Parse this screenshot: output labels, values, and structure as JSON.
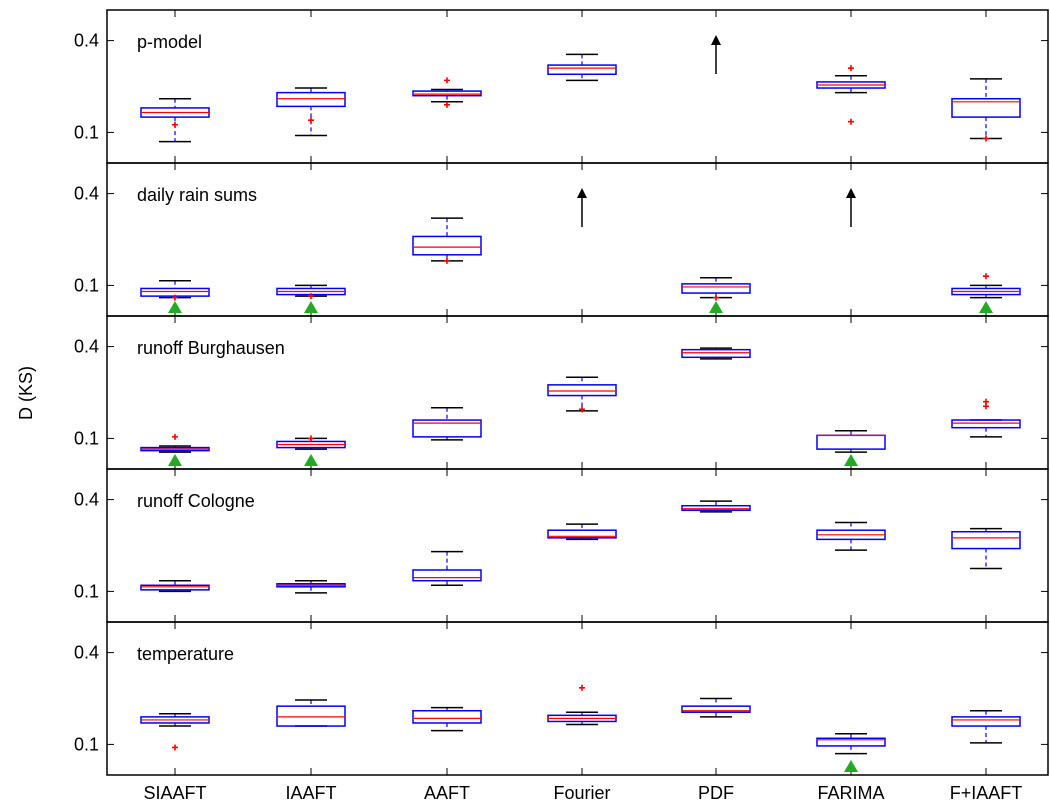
{
  "chart_data": {
    "type": "box",
    "ylabel": "D (KS)",
    "categories": [
      "SIAAFT",
      "IAAFT",
      "AAFT",
      "Fourier",
      "PDF",
      "FARIMA",
      "F+IAAFT"
    ],
    "yticks": [
      0.1,
      0.4
    ],
    "ylim": [
      0,
      0.5
    ],
    "colors": {
      "box": "#0000ff",
      "median": "#ff0000",
      "outlier": "#ff0000",
      "whisker_cap": "#000000",
      "acceptance_marker": "#22aa22",
      "arrow": "#000000"
    },
    "panels": [
      {
        "title": "p-model",
        "boxes": [
          {
            "lw": 0.07,
            "q1": 0.15,
            "med": 0.165,
            "q3": 0.18,
            "uw": 0.21,
            "out": [
              0.125
            ]
          },
          {
            "lw": 0.09,
            "q1": 0.185,
            "med": 0.21,
            "q3": 0.23,
            "uw": 0.245,
            "out": [
              0.14
            ]
          },
          {
            "lw": 0.2,
            "q1": 0.22,
            "med": 0.225,
            "q3": 0.235,
            "uw": 0.24,
            "out": [
              0.19,
              0.27
            ]
          },
          {
            "lw": 0.27,
            "q1": 0.29,
            "med": 0.31,
            "q3": 0.32,
            "uw": 0.355,
            "out": []
          },
          null,
          {
            "lw": 0.23,
            "q1": 0.245,
            "med": 0.255,
            "q3": 0.265,
            "uw": 0.285,
            "out": [
              0.135,
              0.31
            ]
          },
          {
            "lw": 0.08,
            "q1": 0.15,
            "med": 0.2,
            "q3": 0.21,
            "uw": 0.275,
            "out": [
              0.08
            ]
          }
        ],
        "accepted": [],
        "off_scale": [
          "PDF"
        ]
      },
      {
        "title": "daily rain sums",
        "boxes": [
          {
            "lw": 0.06,
            "q1": 0.065,
            "med": 0.08,
            "q3": 0.09,
            "uw": 0.115,
            "out": [
              0.06
            ]
          },
          {
            "lw": 0.065,
            "q1": 0.07,
            "med": 0.08,
            "q3": 0.09,
            "uw": 0.1,
            "out": [
              0.065
            ]
          },
          {
            "lw": 0.18,
            "q1": 0.2,
            "med": 0.225,
            "q3": 0.26,
            "uw": 0.32,
            "out": [
              0.18
            ]
          },
          null,
          {
            "lw": 0.06,
            "q1": 0.075,
            "med": 0.095,
            "q3": 0.105,
            "uw": 0.125,
            "out": [
              0.06
            ]
          },
          null,
          {
            "lw": 0.06,
            "q1": 0.07,
            "med": 0.08,
            "q3": 0.09,
            "uw": 0.1,
            "out": [
              0.13
            ]
          }
        ],
        "accepted": [
          "SIAAFT",
          "IAAFT",
          "PDF",
          "F+IAAFT"
        ],
        "off_scale": [
          "Fourier",
          "FARIMA"
        ]
      },
      {
        "title": "runoff Burghausen",
        "boxes": [
          {
            "lw": 0.055,
            "q1": 0.06,
            "med": 0.065,
            "q3": 0.07,
            "uw": 0.075,
            "out": [
              0.105
            ]
          },
          {
            "lw": 0.065,
            "q1": 0.07,
            "med": 0.08,
            "q3": 0.09,
            "uw": 0.1,
            "out": [
              0.1
            ]
          },
          {
            "lw": 0.095,
            "q1": 0.105,
            "med": 0.15,
            "q3": 0.16,
            "uw": 0.2,
            "out": []
          },
          {
            "lw": 0.19,
            "q1": 0.24,
            "med": 0.255,
            "q3": 0.275,
            "uw": 0.3,
            "out": [
              0.195
            ]
          },
          {
            "lw": 0.36,
            "q1": 0.365,
            "med": 0.38,
            "q3": 0.39,
            "uw": 0.395,
            "out": []
          },
          {
            "lw": 0.055,
            "q1": 0.065,
            "med": 0.11,
            "q3": 0.11,
            "uw": 0.125,
            "out": []
          },
          {
            "lw": 0.105,
            "q1": 0.135,
            "med": 0.15,
            "q3": 0.16,
            "uw": 0.16,
            "out": [
              0.205,
              0.22
            ]
          }
        ],
        "accepted": [
          "SIAAFT",
          "IAAFT",
          "FARIMA"
        ],
        "off_scale": []
      },
      {
        "title": "runoff Cologne",
        "boxes": [
          {
            "lw": 0.1,
            "q1": 0.105,
            "med": 0.115,
            "q3": 0.12,
            "uw": 0.135,
            "out": []
          },
          {
            "lw": 0.095,
            "q1": 0.115,
            "med": 0.12,
            "q3": 0.125,
            "uw": 0.135,
            "out": []
          },
          {
            "lw": 0.12,
            "q1": 0.135,
            "med": 0.145,
            "q3": 0.17,
            "uw": 0.23,
            "out": []
          },
          {
            "lw": 0.27,
            "q1": 0.275,
            "med": 0.28,
            "q3": 0.3,
            "uw": 0.32,
            "out": []
          },
          {
            "lw": 0.36,
            "q1": 0.365,
            "med": 0.37,
            "q3": 0.38,
            "uw": 0.395,
            "out": []
          },
          {
            "lw": 0.235,
            "q1": 0.27,
            "med": 0.285,
            "q3": 0.3,
            "uw": 0.325,
            "out": []
          },
          {
            "lw": 0.175,
            "q1": 0.24,
            "med": 0.275,
            "q3": 0.295,
            "uw": 0.305,
            "out": []
          }
        ],
        "accepted": [],
        "off_scale": []
      },
      {
        "title": "temperature",
        "boxes": [
          {
            "lw": 0.16,
            "q1": 0.17,
            "med": 0.18,
            "q3": 0.19,
            "uw": 0.2,
            "out": [
              0.09
            ]
          },
          {
            "lw": 0.16,
            "q1": 0.16,
            "med": 0.19,
            "q3": 0.225,
            "uw": 0.245,
            "out": []
          },
          {
            "lw": 0.145,
            "q1": 0.17,
            "med": 0.185,
            "q3": 0.21,
            "uw": 0.22,
            "out": []
          },
          {
            "lw": 0.165,
            "q1": 0.175,
            "med": 0.185,
            "q3": 0.195,
            "uw": 0.205,
            "out": [
              0.285
            ]
          },
          {
            "lw": 0.19,
            "q1": 0.205,
            "med": 0.21,
            "q3": 0.225,
            "uw": 0.25,
            "out": []
          },
          {
            "lw": 0.07,
            "q1": 0.095,
            "med": 0.115,
            "q3": 0.12,
            "uw": 0.135,
            "out": []
          },
          {
            "lw": 0.105,
            "q1": 0.16,
            "med": 0.18,
            "q3": 0.19,
            "uw": 0.21,
            "out": []
          }
        ],
        "accepted": [
          "FARIMA"
        ],
        "off_scale": []
      }
    ]
  }
}
